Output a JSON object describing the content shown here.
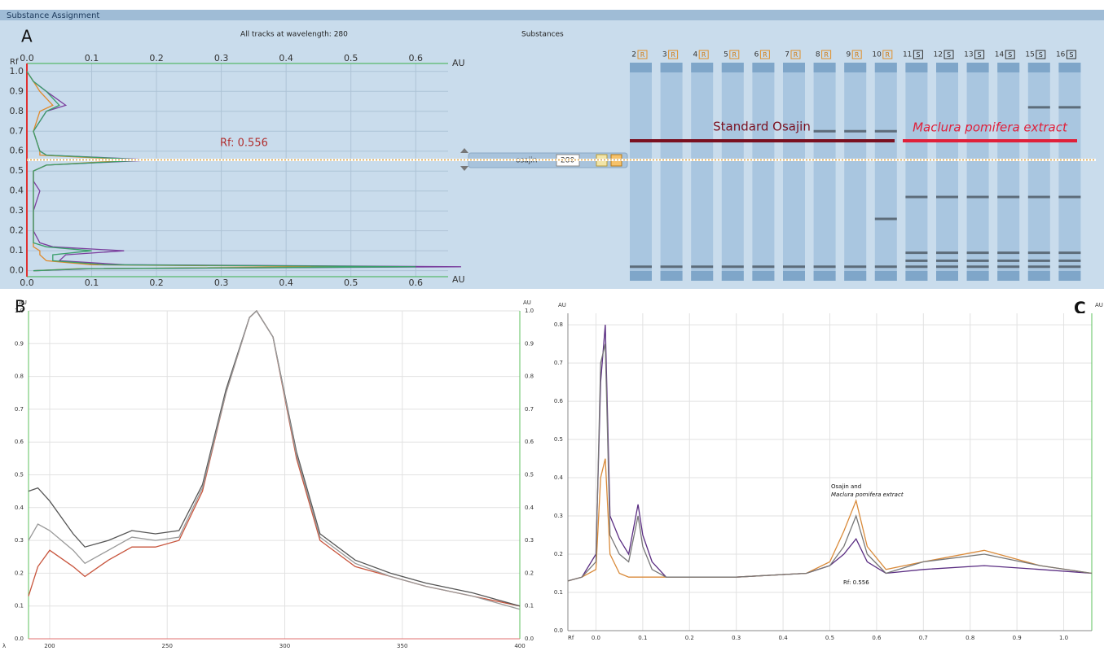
{
  "ui": {
    "window_title": "Substance Assignment",
    "panel_labels": [
      "A",
      "B",
      "C"
    ],
    "substances_header": "Substances",
    "substance": "osajin",
    "wavelength": "280"
  },
  "tracks": {
    "rflim": [
      -0.03,
      1.04
    ],
    "group_labels": [
      "Standard Osajin",
      "Maclura pomifera extract"
    ],
    "items": [
      {
        "number": "2",
        "badge": "R",
        "bands": [
          0.02,
          0.556
        ]
      },
      {
        "number": "3",
        "badge": "R",
        "bands": [
          0.02,
          0.556
        ]
      },
      {
        "number": "4",
        "badge": "R",
        "bands": [
          0.02,
          0.556
        ]
      },
      {
        "number": "5",
        "badge": "R",
        "bands": [
          0.02,
          0.556
        ]
      },
      {
        "number": "6",
        "badge": "R",
        "bands": [
          0.02,
          0.556
        ]
      },
      {
        "number": "7",
        "badge": "R",
        "bands": [
          0.02,
          0.556
        ]
      },
      {
        "number": "8",
        "badge": "R",
        "bands": [
          0.02,
          0.556,
          0.7
        ]
      },
      {
        "number": "9",
        "badge": "R",
        "bands": [
          0.02,
          0.556,
          0.7
        ]
      },
      {
        "number": "10",
        "badge": "R",
        "bands": [
          0.02,
          0.26,
          0.556,
          0.7
        ]
      },
      {
        "number": "11",
        "badge": "S",
        "bands": [
          0.02,
          0.05,
          0.09,
          0.37,
          0.556
        ]
      },
      {
        "number": "12",
        "badge": "S",
        "bands": [
          0.02,
          0.05,
          0.09,
          0.37,
          0.556
        ]
      },
      {
        "number": "13",
        "badge": "S",
        "bands": [
          0.02,
          0.05,
          0.09,
          0.37,
          0.556
        ]
      },
      {
        "number": "14",
        "badge": "S",
        "bands": [
          0.02,
          0.05,
          0.09,
          0.37,
          0.556
        ]
      },
      {
        "number": "15",
        "badge": "S",
        "bands": [
          0.02,
          0.05,
          0.09,
          0.37,
          0.556,
          0.82
        ]
      },
      {
        "number": "16",
        "badge": "S",
        "bands": [
          0.02,
          0.05,
          0.09,
          0.37,
          0.556,
          0.82
        ]
      }
    ]
  },
  "chart_data": [
    {
      "type": "line",
      "orientation": "horizontal",
      "title": "All tracks at wavelength: 280",
      "x_label": "Rf",
      "y_label": "AU",
      "annotations": [
        "Rf: 0.556"
      ],
      "rf_line": 0.556,
      "grid": true,
      "x": [
        0,
        0.01,
        0.02,
        0.03,
        0.05,
        0.08,
        0.1,
        0.12,
        0.14,
        0.2,
        0.3,
        0.4,
        0.45,
        0.5,
        0.53,
        0.556,
        0.58,
        0.6,
        0.7,
        0.8,
        0.83,
        0.9,
        0.95,
        1.0
      ],
      "series": [
        {
          "color": "#7b3f9e",
          "values": [
            0.01,
            0.1,
            0.67,
            0.15,
            0.05,
            0.06,
            0.15,
            0.04,
            0.02,
            0.01,
            0.01,
            0.02,
            0.01,
            0.01,
            0.03,
            0.2,
            0.03,
            0.02,
            0.01,
            0.03,
            0.06,
            0.03,
            0.01,
            0.0
          ]
        },
        {
          "color": "#e08a2c",
          "values": [
            0.01,
            0.08,
            0.5,
            0.1,
            0.03,
            0.02,
            0.02,
            0.01,
            0.01,
            0.01,
            0.01,
            0.01,
            0.01,
            0.01,
            0.03,
            0.17,
            0.02,
            0.02,
            0.01,
            0.02,
            0.04,
            0.02,
            0.01,
            0.0
          ]
        },
        {
          "color": "#3a9e6a",
          "values": [
            0.01,
            0.09,
            0.6,
            0.12,
            0.04,
            0.04,
            0.1,
            0.03,
            0.01,
            0.01,
            0.01,
            0.01,
            0.01,
            0.01,
            0.03,
            0.19,
            0.03,
            0.02,
            0.01,
            0.03,
            0.05,
            0.03,
            0.01,
            0.0
          ]
        }
      ],
      "xlim": [
        -0.03,
        1.04
      ],
      "xticks": [
        {
          "value": 0,
          "label": "0.0"
        },
        0.1,
        0.2,
        0.3,
        0.4,
        0.5,
        0.6,
        0.7,
        0.8,
        0.9,
        {
          "value": 1,
          "label": "1.0"
        }
      ],
      "ylim": [
        0,
        0.65
      ],
      "yticks": [
        {
          "value": 0,
          "label": "0.0"
        },
        0.1,
        0.2,
        0.3,
        0.4,
        0.5,
        0.6
      ]
    },
    {
      "type": "line",
      "x_label": "λ",
      "y_label": "AU",
      "grid": true,
      "x": [
        191,
        195,
        200,
        210,
        215,
        225,
        235,
        245,
        255,
        265,
        275,
        285,
        288,
        295,
        305,
        315,
        330,
        345,
        360,
        380,
        400
      ],
      "series": [
        {
          "color": "#c8553d",
          "values": [
            0.13,
            0.22,
            0.27,
            0.22,
            0.19,
            0.24,
            0.28,
            0.28,
            0.3,
            0.45,
            0.75,
            0.98,
            1.0,
            0.92,
            0.55,
            0.3,
            0.22,
            0.19,
            0.16,
            0.13,
            0.1
          ]
        },
        {
          "color": "#555555",
          "values": [
            0.45,
            0.46,
            0.42,
            0.32,
            0.28,
            0.3,
            0.33,
            0.32,
            0.33,
            0.47,
            0.76,
            0.98,
            1.0,
            0.92,
            0.57,
            0.32,
            0.24,
            0.2,
            0.17,
            0.14,
            0.1
          ]
        },
        {
          "color": "#999999",
          "values": [
            0.3,
            0.35,
            0.33,
            0.27,
            0.23,
            0.27,
            0.31,
            0.3,
            0.31,
            0.46,
            0.75,
            0.98,
            1.0,
            0.92,
            0.56,
            0.31,
            0.23,
            0.19,
            0.16,
            0.13,
            0.09
          ]
        }
      ],
      "xlim": [
        191,
        400
      ],
      "xticks": [
        200,
        250,
        300,
        350,
        400
      ],
      "ylim": [
        0,
        1.0
      ],
      "yticks": [
        {
          "value": 0,
          "label": "0.0"
        },
        0.1,
        0.2,
        0.3,
        0.4,
        0.5,
        0.6,
        0.7,
        0.8,
        0.9,
        {
          "value": 1,
          "label": "1.0"
        }
      ]
    },
    {
      "type": "line",
      "x_label": "Rf",
      "y_label": "AU",
      "grid": true,
      "annotations": [
        "Osajin and",
        "Maclura pomifera extract",
        "Rf: 0.556"
      ],
      "x": [
        -0.06,
        -0.03,
        0.0,
        0.01,
        0.02,
        0.03,
        0.05,
        0.07,
        0.09,
        0.1,
        0.12,
        0.15,
        0.3,
        0.45,
        0.5,
        0.53,
        0.556,
        0.58,
        0.62,
        0.7,
        0.83,
        0.95,
        1.06
      ],
      "series": [
        {
          "color": "#5a2d82",
          "values": [
            0.13,
            0.14,
            0.2,
            0.65,
            0.8,
            0.3,
            0.24,
            0.2,
            0.33,
            0.25,
            0.18,
            0.14,
            0.14,
            0.15,
            0.17,
            0.2,
            0.24,
            0.18,
            0.15,
            0.16,
            0.17,
            0.16,
            0.15
          ]
        },
        {
          "color": "#d98a3a",
          "values": [
            0.13,
            0.14,
            0.16,
            0.4,
            0.45,
            0.2,
            0.15,
            0.14,
            0.14,
            0.14,
            0.14,
            0.14,
            0.14,
            0.15,
            0.18,
            0.26,
            0.34,
            0.22,
            0.16,
            0.18,
            0.21,
            0.17,
            0.15
          ]
        },
        {
          "color": "#777777",
          "values": [
            0.13,
            0.14,
            0.18,
            0.7,
            0.75,
            0.25,
            0.2,
            0.18,
            0.3,
            0.22,
            0.16,
            0.14,
            0.14,
            0.15,
            0.17,
            0.22,
            0.3,
            0.2,
            0.15,
            0.18,
            0.2,
            0.17,
            0.15
          ]
        }
      ],
      "xlim": [
        -0.06,
        1.06
      ],
      "xticks": [
        {
          "value": 0,
          "label": "0.0"
        },
        0.1,
        0.2,
        0.3,
        0.4,
        0.5,
        0.6,
        0.7,
        0.8,
        0.9,
        {
          "value": 1,
          "label": "1.0"
        }
      ],
      "ylim": [
        0,
        0.83
      ],
      "yticks": [
        {
          "value": 0,
          "label": "0.0"
        },
        0.1,
        0.2,
        0.3,
        0.4,
        0.5,
        0.6,
        0.7,
        0.8
      ]
    }
  ]
}
